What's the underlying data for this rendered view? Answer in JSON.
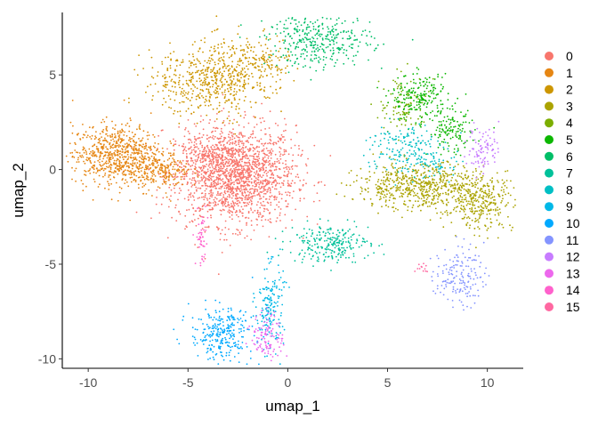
{
  "chart_data": {
    "type": "scatter",
    "title": "",
    "xlabel": "umap_1",
    "ylabel": "umap_2",
    "xlim": [
      -11.3,
      11.8
    ],
    "ylim": [
      -10.5,
      8.3
    ],
    "xticks": [
      -10,
      -5,
      0,
      5,
      10
    ],
    "yticks": [
      -10,
      -5,
      0,
      5
    ],
    "xtick_labels": [
      "-10",
      "-5",
      "0",
      "5",
      "10"
    ],
    "ytick_labels": [
      "-10",
      "-5",
      "0",
      "5"
    ],
    "grid": false,
    "legend_position": "right",
    "series": [
      {
        "name": "0",
        "color": "#F8766D",
        "clusters": [
          {
            "cx": -2.6,
            "cy": -0.3,
            "sx": 1.5,
            "sy": 1.3,
            "n": 1800
          },
          {
            "cx": -4.3,
            "cy": 0.8,
            "sx": 0.6,
            "sy": 0.6,
            "n": 120
          }
        ]
      },
      {
        "name": "1",
        "color": "#E68613",
        "clusters": [
          {
            "cx": -8.6,
            "cy": 0.8,
            "sx": 1.1,
            "sy": 0.8,
            "n": 700
          },
          {
            "cx": -6.3,
            "cy": -0.1,
            "sx": 0.7,
            "sy": 0.5,
            "n": 200
          }
        ]
      },
      {
        "name": "2",
        "color": "#CD9600",
        "clusters": [
          {
            "cx": -3.2,
            "cy": 4.8,
            "sx": 0.9,
            "sy": 1.0,
            "n": 350
          },
          {
            "cx": -5.2,
            "cy": 4.6,
            "sx": 1.0,
            "sy": 0.9,
            "n": 200
          },
          {
            "cx": -1.3,
            "cy": 5.5,
            "sx": 0.7,
            "sy": 0.7,
            "n": 150
          }
        ]
      },
      {
        "name": "3",
        "color": "#ABA300",
        "clusters": [
          {
            "cx": 6.8,
            "cy": -0.9,
            "sx": 1.7,
            "sy": 0.6,
            "n": 650
          },
          {
            "cx": 9.7,
            "cy": -1.8,
            "sx": 0.8,
            "sy": 0.7,
            "n": 250
          }
        ]
      },
      {
        "name": "4",
        "color": "#7CAE00",
        "clusters": [
          {
            "cx": 5.8,
            "cy": 3.4,
            "sx": 0.6,
            "sy": 0.8,
            "n": 100
          }
        ]
      },
      {
        "name": "5",
        "color": "#0CB702",
        "clusters": [
          {
            "cx": 6.6,
            "cy": 3.8,
            "sx": 0.7,
            "sy": 0.6,
            "n": 200
          },
          {
            "cx": 8.2,
            "cy": 2.0,
            "sx": 0.6,
            "sy": 0.6,
            "n": 130
          }
        ]
      },
      {
        "name": "6",
        "color": "#00BE67",
        "clusters": [
          {
            "cx": 1.6,
            "cy": 6.8,
            "sx": 1.3,
            "sy": 0.7,
            "n": 350
          }
        ]
      },
      {
        "name": "7",
        "color": "#00C19A",
        "clusters": [
          {
            "cx": 2.1,
            "cy": -3.9,
            "sx": 1.0,
            "sy": 0.5,
            "n": 250
          }
        ]
      },
      {
        "name": "8",
        "color": "#00BFC4",
        "clusters": [
          {
            "cx": 5.7,
            "cy": 1.1,
            "sx": 0.9,
            "sy": 0.7,
            "n": 160
          },
          {
            "cx": 7.5,
            "cy": 0.3,
            "sx": 0.5,
            "sy": 0.5,
            "n": 60
          }
        ]
      },
      {
        "name": "9",
        "color": "#00B8E7",
        "clusters": [
          {
            "cx": -0.9,
            "cy": -7.2,
            "sx": 0.35,
            "sy": 1.1,
            "n": 170
          }
        ]
      },
      {
        "name": "10",
        "color": "#00A9FF",
        "clusters": [
          {
            "cx": -3.3,
            "cy": -8.7,
            "sx": 0.8,
            "sy": 0.7,
            "n": 280
          }
        ]
      },
      {
        "name": "11",
        "color": "#8494FF",
        "clusters": [
          {
            "cx": 8.6,
            "cy": -5.6,
            "sx": 0.6,
            "sy": 0.8,
            "n": 160
          }
        ]
      },
      {
        "name": "12",
        "color": "#C77CFF",
        "clusters": [
          {
            "cx": 9.8,
            "cy": 1.1,
            "sx": 0.4,
            "sy": 0.6,
            "n": 90
          }
        ]
      },
      {
        "name": "13",
        "color": "#ED68ED",
        "clusters": [
          {
            "cx": -1.0,
            "cy": -8.8,
            "sx": 0.4,
            "sy": 0.6,
            "n": 110
          }
        ]
      },
      {
        "name": "14",
        "color": "#FF61CC",
        "clusters": [
          {
            "cx": -4.3,
            "cy": -3.6,
            "sx": 0.15,
            "sy": 0.8,
            "n": 50
          }
        ]
      },
      {
        "name": "15",
        "color": "#FF68A1",
        "clusters": [
          {
            "cx": 6.6,
            "cy": -5.2,
            "sx": 0.2,
            "sy": 0.15,
            "n": 12
          }
        ]
      }
    ]
  }
}
